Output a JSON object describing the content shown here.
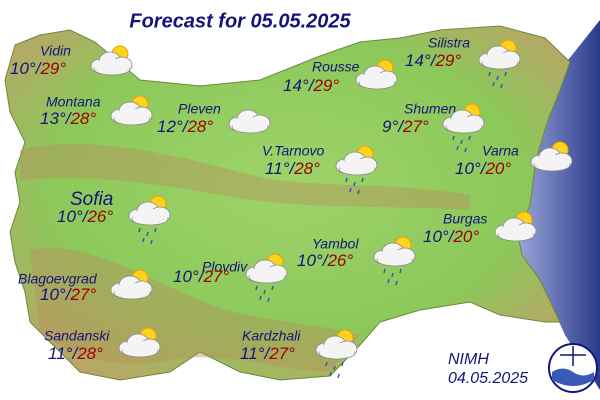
{
  "title": "Forecast for 05.05.2025",
  "separator": "/",
  "cities": [
    {
      "name": "Vidin",
      "low": "10°",
      "high": "29°"
    },
    {
      "name": "Rousse",
      "low": "14°",
      "high": "29°"
    },
    {
      "name": "Silistra",
      "low": "14°",
      "high": "29°"
    },
    {
      "name": "Montana",
      "low": "13°",
      "high": "28°"
    },
    {
      "name": "Pleven",
      "low": "12°",
      "high": "28°"
    },
    {
      "name": "Shumen",
      "low": "9°",
      "high": "27°"
    },
    {
      "name": "V.Tarnovo",
      "low": "11°",
      "high": "28°"
    },
    {
      "name": "Varna",
      "low": "10°",
      "high": "20°"
    },
    {
      "name": "Sofia",
      "low": "10°",
      "high": "26°"
    },
    {
      "name": "Burgas",
      "low": "10°",
      "high": "20°"
    },
    {
      "name": "Yambol",
      "low": "10°",
      "high": "26°"
    },
    {
      "name": "Plovdiv",
      "low": "10°",
      "high": "27°"
    },
    {
      "name": "Blagoevgrad",
      "low": "10°",
      "high": "27°"
    },
    {
      "name": "Sandanski",
      "low": "11°",
      "high": "28°"
    },
    {
      "name": "Kardzhali",
      "low": "11°",
      "high": "27°"
    }
  ],
  "footer": {
    "agency": "NIMH",
    "date": "04.05.2025"
  }
}
